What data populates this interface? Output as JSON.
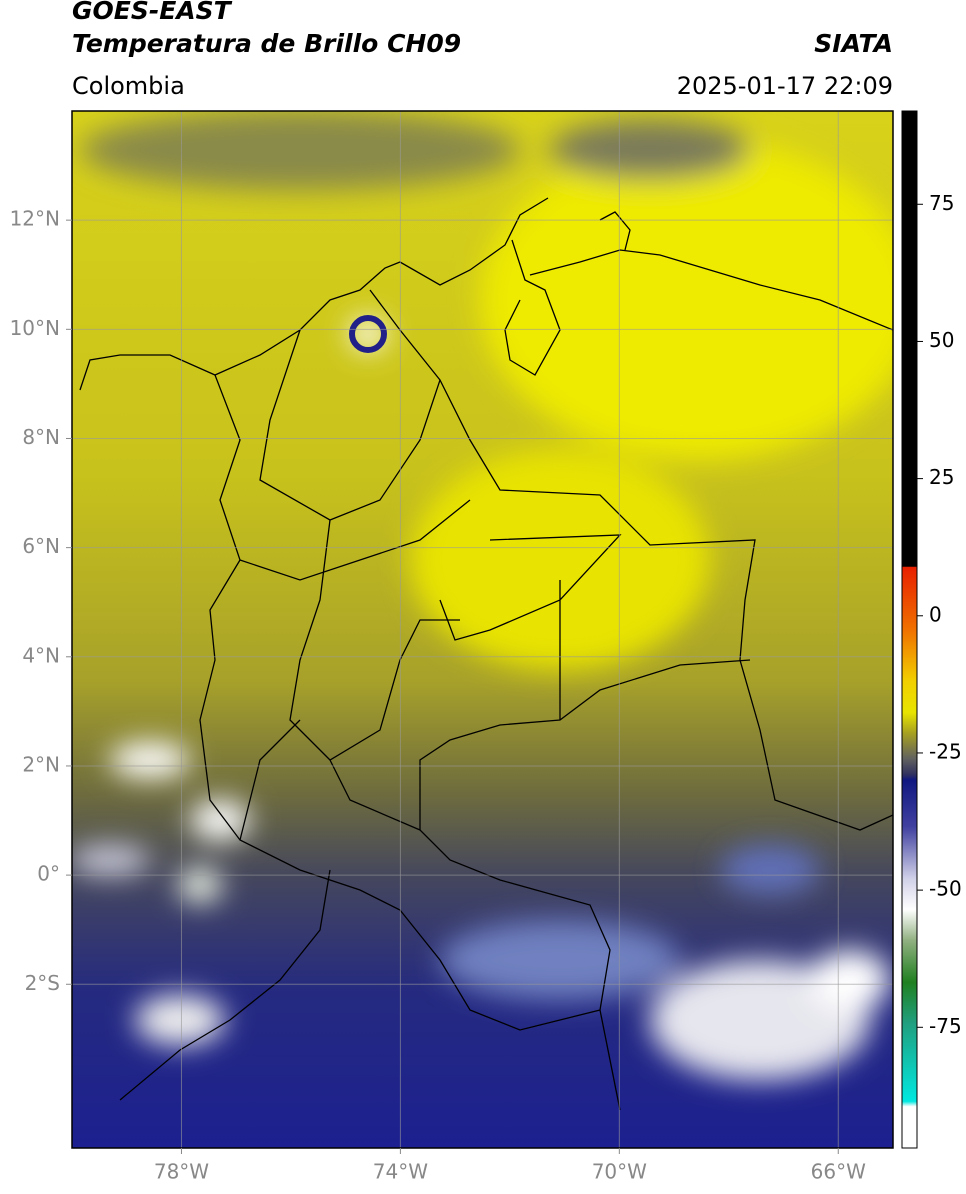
{
  "header": {
    "title": "GOES-EAST",
    "subtitle": "Temperatura de Brillo CH09",
    "source": "SIATA",
    "region": "Colombia",
    "datetime": "2025-01-17 22:09"
  },
  "map": {
    "xlim": [
      -80,
      -65
    ],
    "ylim": [
      -5,
      14
    ],
    "grid": true,
    "xticks": [
      {
        "value": -78,
        "label": "78°W"
      },
      {
        "value": -74,
        "label": "74°W"
      },
      {
        "value": -70,
        "label": "70°W"
      },
      {
        "value": -66,
        "label": "66°W"
      }
    ],
    "yticks": [
      {
        "value": 12,
        "label": "12°N"
      },
      {
        "value": 10,
        "label": "10°N"
      },
      {
        "value": 8,
        "label": "8°N"
      },
      {
        "value": 6,
        "label": "6°N"
      },
      {
        "value": 4,
        "label": "4°N"
      },
      {
        "value": 2,
        "label": "2°N"
      },
      {
        "value": 0,
        "label": "0°"
      },
      {
        "value": -2,
        "label": "2°S"
      }
    ]
  },
  "colorbar": {
    "lim": [
      -97,
      92
    ],
    "ticks": [
      75,
      50,
      25,
      0,
      -25,
      -50,
      -75
    ]
  }
}
